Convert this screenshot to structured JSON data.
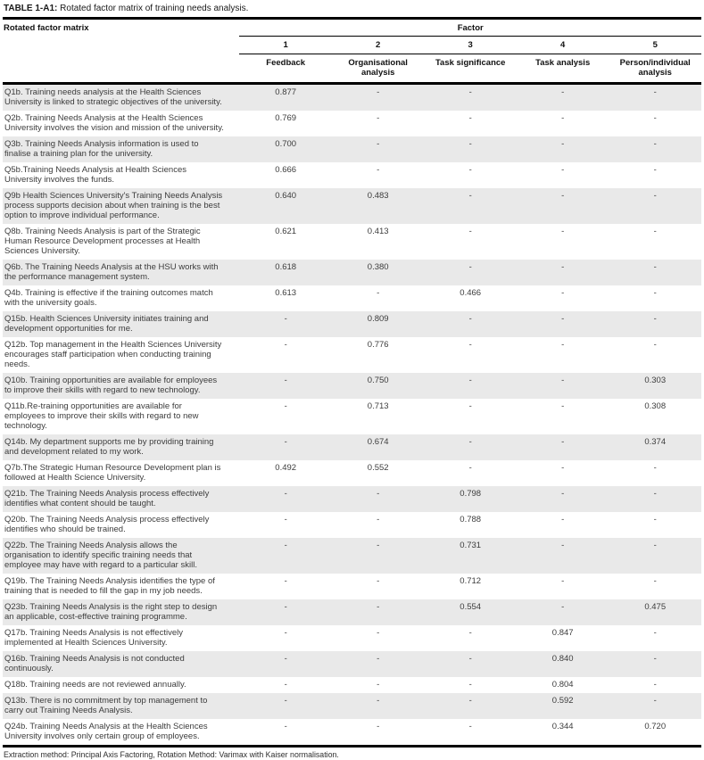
{
  "title": {
    "label": "TABLE 1-A1:",
    "text": "Rotated factor matrix of training needs analysis."
  },
  "table": {
    "corner_header": "Rotated factor matrix",
    "factor_group_header": "Factor",
    "factor_numbers": [
      "1",
      "2",
      "3",
      "4",
      "5"
    ],
    "factor_names": [
      "Feedback",
      "Organisational analysis",
      "Task significance",
      "Task analysis",
      "Person/individual analysis"
    ],
    "rows": [
      {
        "question": "Q1b. Training needs analysis at the Health Sciences University is linked to strategic objectives of the university.",
        "values": [
          "0.877",
          "-",
          "-",
          "-",
          "-"
        ]
      },
      {
        "question": "Q2b. Training Needs Analysis at the Health Sciences University involves the vision and mission of the university.",
        "values": [
          "0.769",
          "-",
          "-",
          "-",
          "-"
        ]
      },
      {
        "question": "Q3b. Training Needs Analysis information is used to finalise a training plan for the university.",
        "values": [
          "0.700",
          "-",
          "-",
          "-",
          "-"
        ]
      },
      {
        "question": "Q5b.Training Needs Analysis at Health Sciences University involves the funds.",
        "values": [
          "0.666",
          "-",
          "-",
          "-",
          "-"
        ]
      },
      {
        "question": "Q9b Health Sciences University's Training Needs Analysis process supports decision about when training is the best option to improve individual performance.",
        "values": [
          "0.640",
          "0.483",
          "-",
          "-",
          "-"
        ]
      },
      {
        "question": "Q8b. Training Needs Analysis is part of the Strategic Human Resource Development processes at Health Sciences University.",
        "values": [
          "0.621",
          "0.413",
          "-",
          "-",
          "-"
        ]
      },
      {
        "question": "Q6b. The Training Needs Analysis at the HSU works with the performance management system.",
        "values": [
          "0.618",
          "0.380",
          "-",
          "-",
          "-"
        ]
      },
      {
        "question": "Q4b. Training is effective if the training outcomes match with the university goals.",
        "values": [
          "0.613",
          "-",
          "0.466",
          "-",
          "-"
        ]
      },
      {
        "question": "Q15b. Health Sciences University initiates training and development opportunities for me.",
        "values": [
          "-",
          "0.809",
          "-",
          "-",
          "-"
        ]
      },
      {
        "question": "Q12b. Top management in the Health Sciences University encourages staff participation when conducting training needs.",
        "values": [
          "-",
          "0.776",
          "-",
          "-",
          "-"
        ]
      },
      {
        "question": "Q10b. Training opportunities are available for employees to improve their skills with regard to new technology.",
        "values": [
          "-",
          "0.750",
          "-",
          "-",
          "0.303"
        ]
      },
      {
        "question": "Q11b.Re-training opportunities are available for employees to improve their skills with regard to new technology.",
        "values": [
          "-",
          "0.713",
          "-",
          "-",
          "0.308"
        ]
      },
      {
        "question": "Q14b. My department supports me by providing training and development related to my work.",
        "values": [
          "-",
          "0.674",
          "-",
          "-",
          "0.374"
        ]
      },
      {
        "question": "Q7b.The Strategic Human Resource Development plan is followed at Health Science University.",
        "values": [
          "0.492",
          "0.552",
          "-",
          "-",
          "-"
        ]
      },
      {
        "question": "Q21b. The Training Needs Analysis process effectively identifies what content should be taught.",
        "values": [
          "-",
          "-",
          "0.798",
          "-",
          "-"
        ]
      },
      {
        "question": "Q20b. The Training Needs Analysis process effectively identifies who should be trained.",
        "values": [
          "-",
          "-",
          "0.788",
          "-",
          "-"
        ]
      },
      {
        "question": "Q22b. The Training Needs Analysis allows the organisation to identify specific training needs that employee may have with regard to a particular skill.",
        "values": [
          "-",
          "-",
          "0.731",
          "-",
          "-"
        ]
      },
      {
        "question": "Q19b. The Training Needs Analysis identifies the type of training that is needed to fill the gap in my job needs.",
        "values": [
          "-",
          "-",
          "0.712",
          "-",
          "-"
        ]
      },
      {
        "question": "Q23b. Training Needs Analysis is the right step to design an applicable, cost-effective training programme.",
        "values": [
          "-",
          "-",
          "0.554",
          "-",
          "0.475"
        ]
      },
      {
        "question": "Q17b. Training Needs Analysis is not effectively implemented at Health Sciences University.",
        "values": [
          "-",
          "-",
          "-",
          "0.847",
          "-"
        ]
      },
      {
        "question": "Q16b. Training Needs Analysis is not conducted continuously.",
        "values": [
          "-",
          "-",
          "-",
          "0.840",
          "-"
        ]
      },
      {
        "question": "Q18b. Training needs are not reviewed annually.",
        "values": [
          "-",
          "-",
          "-",
          "0.804",
          "-"
        ]
      },
      {
        "question": "Q13b. There is no commitment by top management to carry out Training Needs Analysis.",
        "values": [
          "-",
          "-",
          "-",
          "0.592",
          "-"
        ]
      },
      {
        "question": "Q24b. Training Needs Analysis at the Health Sciences University involves only certain group of employees.",
        "values": [
          "-",
          "-",
          "-",
          "0.344",
          "0.720"
        ]
      }
    ]
  },
  "footnote": "Extraction method: Principal Axis Factoring, Rotation Method: Varimax with Kaiser normalisation.",
  "colors": {
    "row_shade": "#e9e9e9",
    "rule": "#000000",
    "body_text": "#3c3c3c",
    "header_text": "#111111"
  }
}
